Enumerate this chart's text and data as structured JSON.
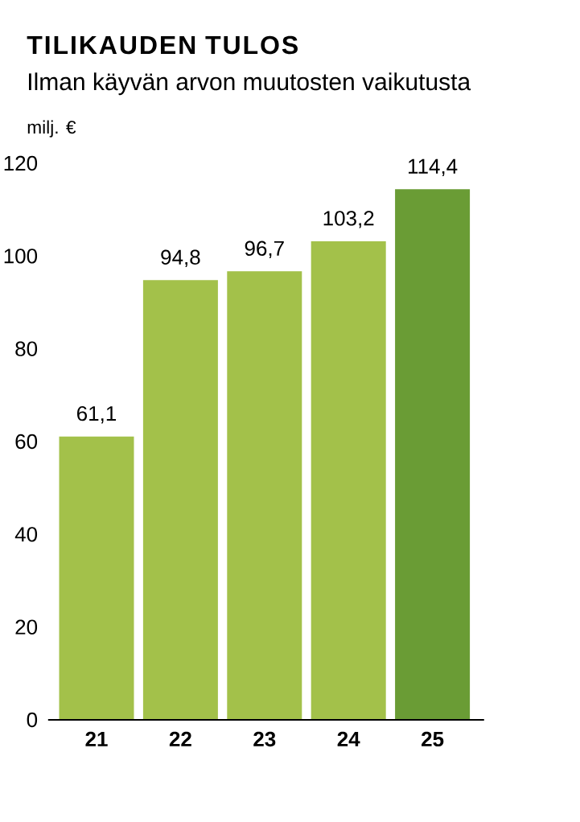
{
  "chart_data": {
    "type": "bar",
    "title": "TILIKAUDEN TULOS",
    "subtitle": "Ilman käyvän arvon muutosten vaikutusta",
    "ylabel": "milj. €",
    "categories": [
      "21",
      "22",
      "23",
      "24",
      "25"
    ],
    "values": [
      61.1,
      94.8,
      96.7,
      103.2,
      114.4
    ],
    "value_labels": [
      "61,1",
      "94,8",
      "96,7",
      "103,2",
      "114,4"
    ],
    "colors": [
      "#a3c14a",
      "#a3c14a",
      "#a3c14a",
      "#a3c14a",
      "#6a9c35"
    ],
    "ylim": [
      0,
      120
    ],
    "yticks": [
      0,
      20,
      40,
      60,
      80,
      100,
      120
    ]
  }
}
